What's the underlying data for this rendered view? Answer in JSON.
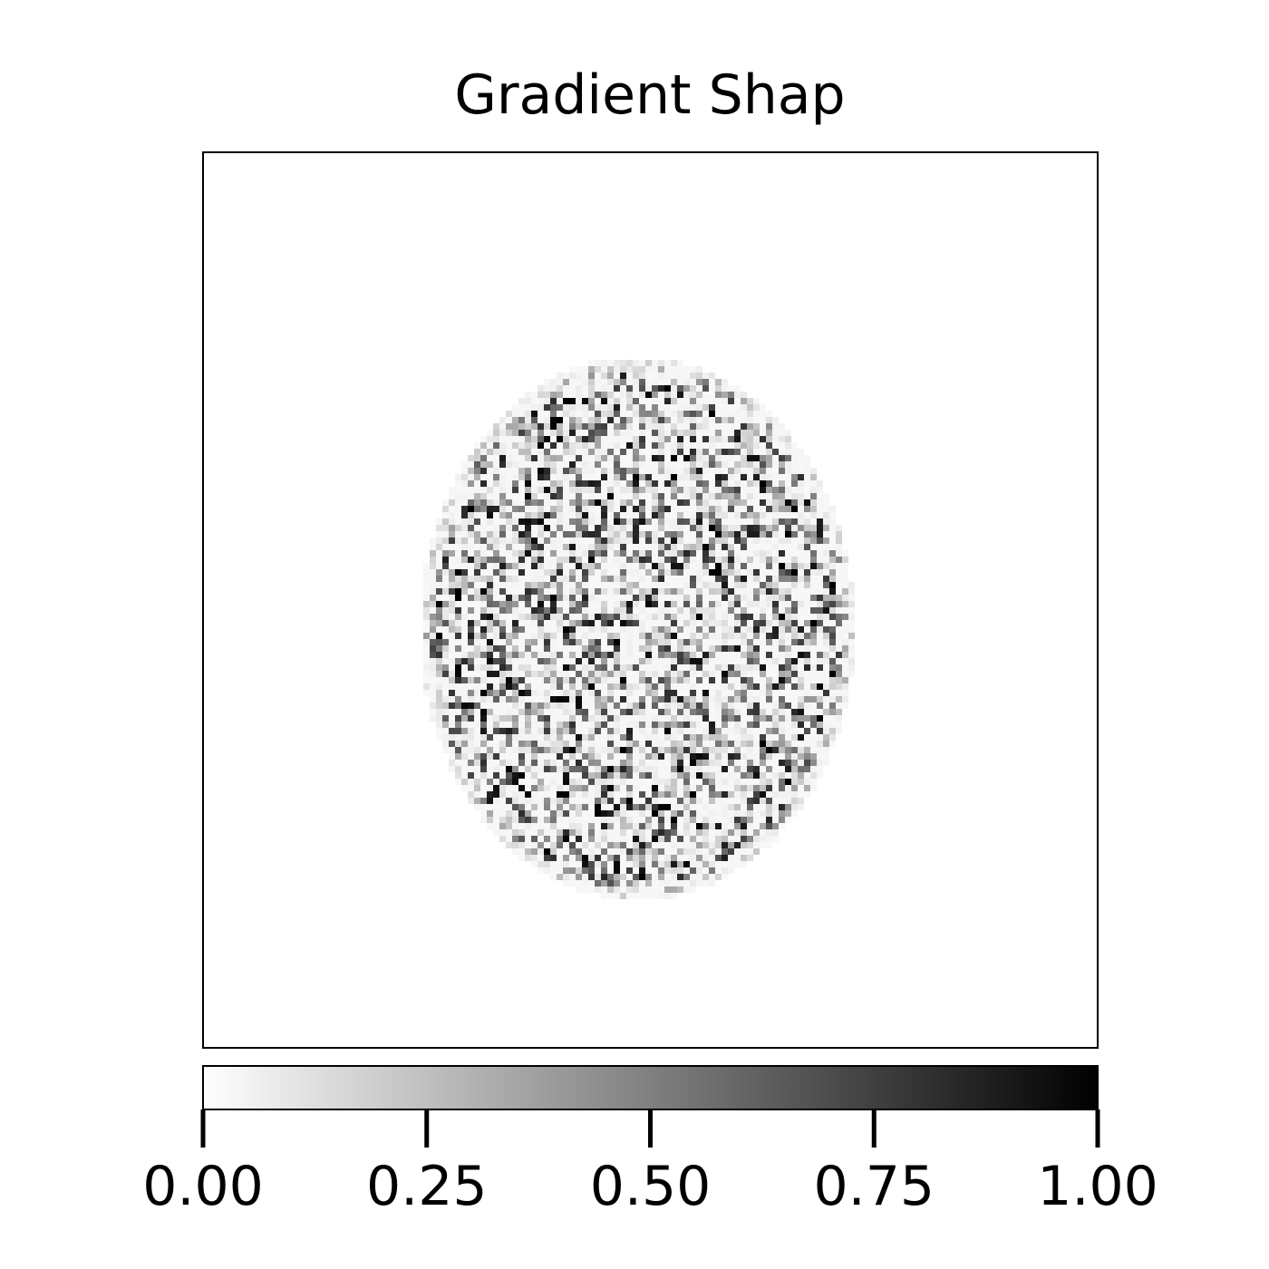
{
  "chart_data": {
    "type": "heatmap",
    "title": "Gradient Shap",
    "xlabel": "",
    "ylabel": "",
    "colormap": "greys",
    "colormap_low_color": "#ffffff",
    "colormap_high_color": "#000000",
    "colorbar": {
      "orientation": "horizontal",
      "placement": "bottom",
      "range": [
        0.0,
        1.0
      ],
      "ticks": [
        0.0,
        0.25,
        0.5,
        0.75,
        1.0
      ],
      "tick_labels": [
        "0.00",
        "0.25",
        "0.50",
        "0.75",
        "1.00"
      ]
    },
    "grid": false,
    "axis_ticks_visible": false,
    "image_description_values": {
      "background_value": 0.0,
      "typical_attribution_range": [
        0.0,
        1.0
      ]
    }
  }
}
